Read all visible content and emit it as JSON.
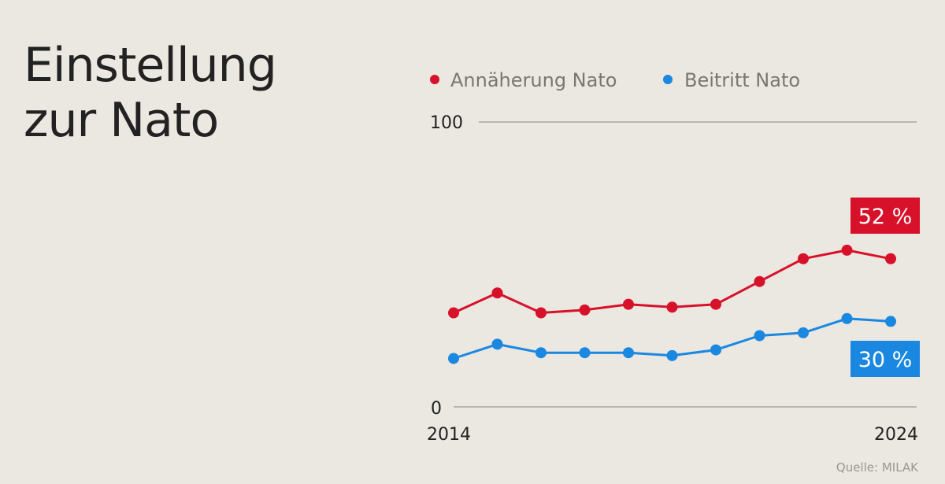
{
  "title_lines": [
    "Einstellung",
    "zur Nato"
  ],
  "source": "Quelle: MILAK",
  "colors": {
    "annaeherung": "#d8112a",
    "beitritt": "#1a88e0",
    "grid": "#a8a5a0",
    "axis_text": "#222222",
    "legend_text": "#7a7670"
  },
  "chart_data": {
    "type": "line",
    "x": [
      2014,
      2015,
      2016,
      2017,
      2018,
      2019,
      2020,
      2021,
      2022,
      2023,
      2024
    ],
    "ylim": [
      0,
      100
    ],
    "y_ticks": [
      "100",
      "0"
    ],
    "x_tick_labels": [
      "2014",
      "2024"
    ],
    "legend_position": "top",
    "grid": true,
    "series": [
      {
        "key": "annaeherung",
        "name": "Annäherung Nato",
        "values": [
          33,
          40,
          33,
          34,
          36,
          35,
          36,
          44,
          52,
          55,
          52
        ],
        "end_label": "52 %"
      },
      {
        "key": "beitritt",
        "name": "Beitritt Nato",
        "values": [
          17,
          22,
          19,
          19,
          19,
          18,
          20,
          25,
          26,
          31,
          30
        ],
        "end_label": "30 %"
      }
    ]
  }
}
